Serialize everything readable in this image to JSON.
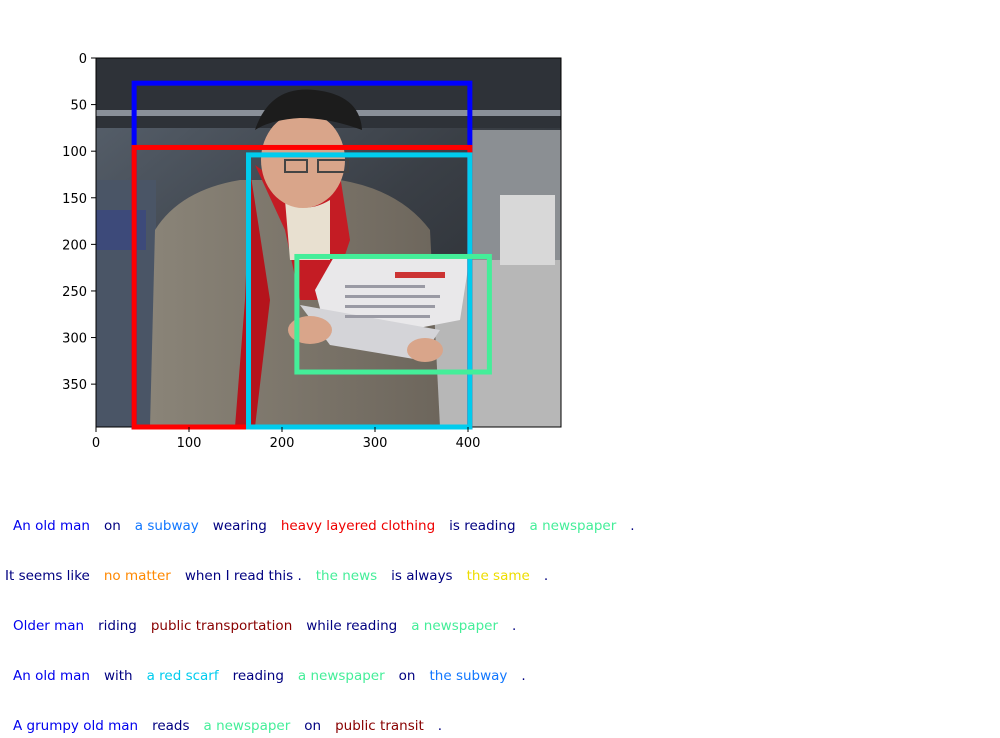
{
  "figure": {
    "photo_description_icon": "photo-of-old-man-reading-newspaper-icon",
    "x_ticks": [
      "0",
      "100",
      "200",
      "300",
      "400"
    ],
    "y_ticks": [
      "0",
      "50",
      "100",
      "150",
      "200",
      "250",
      "300",
      "350"
    ],
    "image_extent": {
      "width": 500,
      "height": 396
    },
    "boxes": [
      {
        "color": "#0000ff",
        "x0": 41,
        "y0": 27,
        "x1": 402,
        "y1": 396
      },
      {
        "color": "#ff0000",
        "x0": 41,
        "y0": 96,
        "x1": 402,
        "y1": 396
      },
      {
        "color": "#00ccee",
        "x0": 164,
        "y0": 104,
        "x1": 402,
        "y1": 396
      },
      {
        "color": "#44ee99",
        "x0": 216,
        "y0": 213,
        "x1": 423,
        "y1": 337
      }
    ]
  },
  "captions": [
    [
      {
        "text": "An old man",
        "color": "#0000ee"
      },
      {
        "text": "on",
        "color": "#000080"
      },
      {
        "text": "a subway",
        "color": "#1177ff"
      },
      {
        "text": "wearing",
        "color": "#000080"
      },
      {
        "text": "heavy layered clothing",
        "color": "#ee0000"
      },
      {
        "text": "is reading",
        "color": "#000080"
      },
      {
        "text": "a newspaper",
        "color": "#44ee99"
      },
      {
        "text": ".",
        "color": "#000080"
      }
    ],
    [
      {
        "text": "It seems like",
        "color": "#000080"
      },
      {
        "text": "no matter",
        "color": "#ff8800"
      },
      {
        "text": "when I read this .",
        "color": "#000080"
      },
      {
        "text": "the news",
        "color": "#44ee99"
      },
      {
        "text": "is always",
        "color": "#000080"
      },
      {
        "text": "the same",
        "color": "#eedd00"
      },
      {
        "text": ".",
        "color": "#000080"
      }
    ],
    [
      {
        "text": "Older man",
        "color": "#0000ee"
      },
      {
        "text": "riding",
        "color": "#000080"
      },
      {
        "text": "public transportation",
        "color": "#880000"
      },
      {
        "text": "while reading",
        "color": "#000080"
      },
      {
        "text": "a newspaper",
        "color": "#44ee99"
      },
      {
        "text": ".",
        "color": "#000080"
      }
    ],
    [
      {
        "text": "An old man",
        "color": "#0000ee"
      },
      {
        "text": "with",
        "color": "#000080"
      },
      {
        "text": "a red scarf",
        "color": "#00ccee"
      },
      {
        "text": "reading",
        "color": "#000080"
      },
      {
        "text": "a newspaper",
        "color": "#44ee99"
      },
      {
        "text": "on",
        "color": "#000080"
      },
      {
        "text": "the subway",
        "color": "#1177ff"
      },
      {
        "text": ".",
        "color": "#000080"
      }
    ],
    [
      {
        "text": "A grumpy old man",
        "color": "#0000ee"
      },
      {
        "text": "reads",
        "color": "#000080"
      },
      {
        "text": "a newspaper",
        "color": "#44ee99"
      },
      {
        "text": "on",
        "color": "#000080"
      },
      {
        "text": "public transit",
        "color": "#880000"
      },
      {
        "text": ".",
        "color": "#000080"
      }
    ]
  ]
}
